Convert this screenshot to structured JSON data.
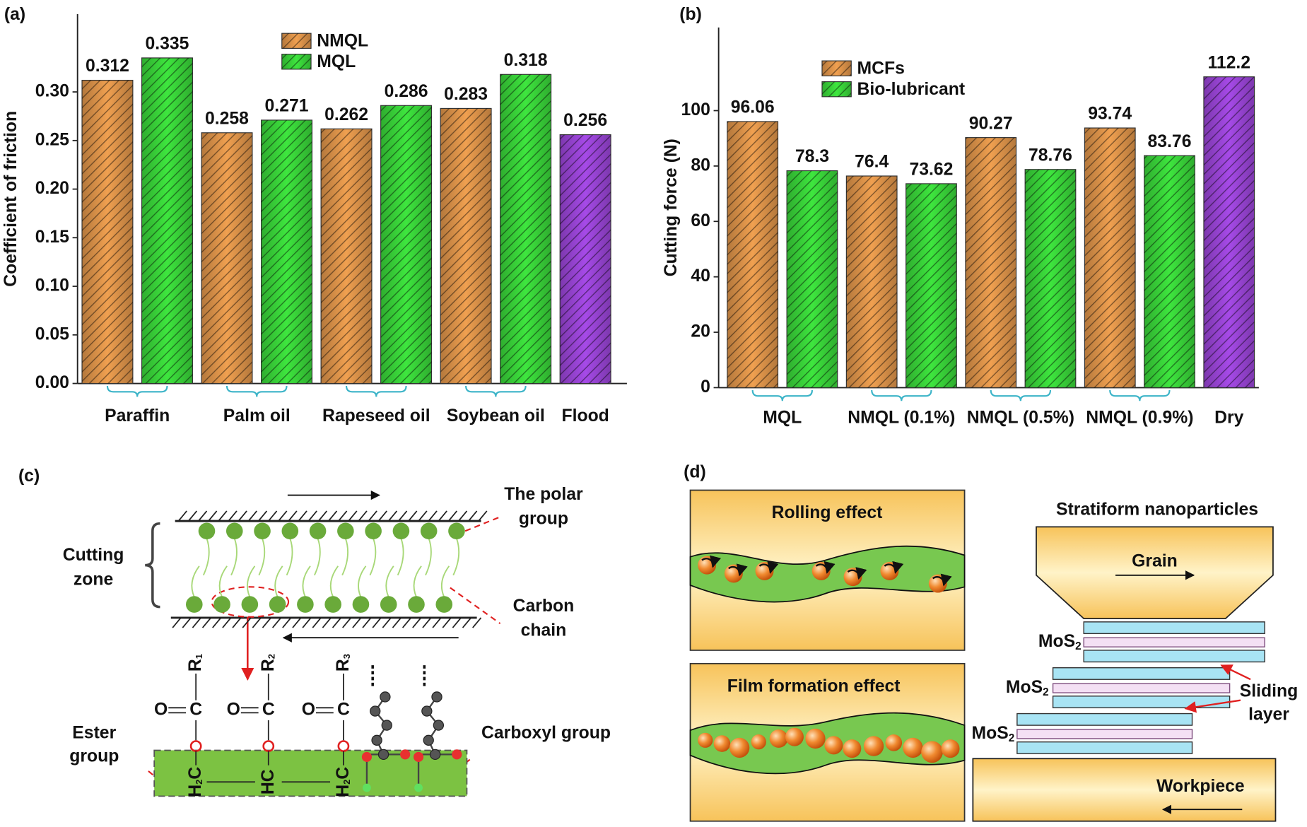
{
  "chart_data": [
    {
      "type": "bar",
      "label": "(a)",
      "y_label": "Coefficient of friction",
      "categories": [
        "Paraffin",
        "Palm oil",
        "Rapeseed oil",
        "Soybean oil",
        "Flood"
      ],
      "series": [
        {
          "name": "NMQL",
          "color": "#f0a050",
          "values": [
            0.312,
            0.258,
            0.262,
            0.283,
            null
          ]
        },
        {
          "name": "MQL",
          "color": "#3ee63e",
          "values": [
            0.335,
            0.271,
            0.286,
            0.318,
            null
          ]
        },
        {
          "color": "#a64ae8",
          "values": [
            null,
            null,
            null,
            null,
            0.256
          ]
        }
      ],
      "ylim": [
        0,
        0.38
      ],
      "yticks": [
        {
          "value": 0,
          "label": "0.00"
        },
        0.05,
        {
          "value": 0.1,
          "label": "0.10"
        },
        0.15,
        {
          "value": 0.2,
          "label": "0.20"
        },
        0.25,
        {
          "value": 0.3,
          "label": "0.30"
        }
      ],
      "grid": false,
      "legend": "upper center",
      "hatch": true
    },
    {
      "type": "bar",
      "label": "(b)",
      "y_label": "Cutting force (N)",
      "categories": [
        "MQL",
        "NMQL (0.1%)",
        "NMQL (0.5%)",
        "NMQL (0.9%)",
        "Dry"
      ],
      "series": [
        {
          "name": "MCFs",
          "color": "#f0a050",
          "values": [
            96.06,
            76.4,
            90.27,
            93.74,
            null
          ]
        },
        {
          "name": "Bio-lubricant",
          "color": "#3ee63e",
          "values": [
            78.3,
            73.62,
            78.76,
            83.76,
            null
          ]
        },
        {
          "color": "#a64ae8",
          "values": [
            null,
            null,
            null,
            null,
            112.2
          ]
        }
      ],
      "ylim": [
        0,
        130
      ],
      "yticks": [
        0,
        20,
        40,
        60,
        80,
        100
      ],
      "grid": false,
      "legend": "upper left",
      "hatch": true
    }
  ],
  "diagram_c": {
    "label": "(c)",
    "polar_group": [
      "The polar",
      "group"
    ],
    "cutting_zone": [
      "Cutting",
      "zone"
    ],
    "carbon_chain": [
      "Carbon",
      "chain"
    ],
    "ester_group": [
      "Ester",
      "group"
    ],
    "carboxyl_group": "Carboxyl group",
    "substituents": [
      [
        "R",
        "1"
      ],
      [
        "R",
        "2"
      ],
      [
        "R",
        "3"
      ]
    ],
    "carbonyl": [
      "O",
      "C"
    ],
    "backbone": [
      [
        "H",
        "2",
        "C"
      ],
      [
        "HC"
      ],
      [
        "H",
        "2",
        "C"
      ]
    ]
  },
  "diagram_d": {
    "label": "(d)",
    "rolling_effect": "Rolling effect",
    "film_formation_effect": "Film formation effect",
    "stratiform_nanoparticles": "Stratiform nanoparticles",
    "grain": "Grain",
    "mos2": [
      "MoS",
      "2"
    ],
    "sliding_layer": [
      "Sliding",
      "layer"
    ],
    "workpiece": "Workpiece"
  }
}
